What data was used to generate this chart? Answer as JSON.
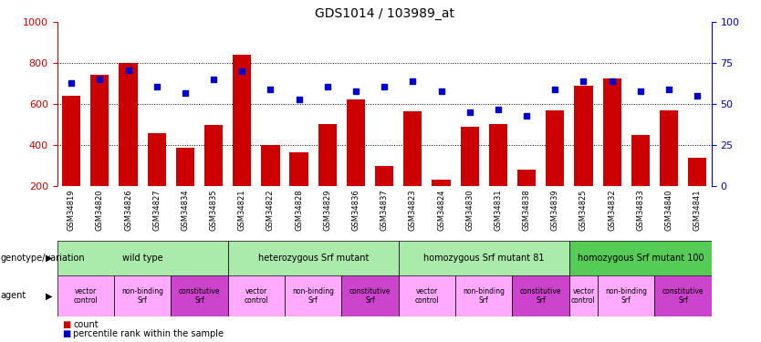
{
  "title": "GDS1014 / 103989_at",
  "samples": [
    "GSM34819",
    "GSM34820",
    "GSM34826",
    "GSM34827",
    "GSM34834",
    "GSM34835",
    "GSM34821",
    "GSM34822",
    "GSM34828",
    "GSM34829",
    "GSM34836",
    "GSM34837",
    "GSM34823",
    "GSM34824",
    "GSM34830",
    "GSM34831",
    "GSM34838",
    "GSM34839",
    "GSM34825",
    "GSM34832",
    "GSM34833",
    "GSM34840",
    "GSM34841"
  ],
  "counts": [
    640,
    745,
    800,
    460,
    390,
    500,
    840,
    400,
    365,
    505,
    625,
    300,
    565,
    235,
    490,
    505,
    280,
    570,
    690,
    725,
    450,
    570,
    340
  ],
  "percentiles": [
    63,
    65,
    71,
    61,
    57,
    65,
    70,
    59,
    53,
    61,
    58,
    61,
    64,
    58,
    45,
    47,
    43,
    59,
    64,
    64,
    58,
    59,
    55
  ],
  "bar_color": "#cc0000",
  "dot_color": "#0000cc",
  "ylim_left": [
    200,
    1000
  ],
  "ylim_right": [
    0,
    100
  ],
  "yticks_left": [
    200,
    400,
    600,
    800,
    1000
  ],
  "yticks_right": [
    0,
    25,
    50,
    75,
    100
  ],
  "hlines": [
    400,
    600,
    800
  ],
  "genotype_groups": [
    {
      "label": "wild type",
      "start": 0,
      "end": 6,
      "color": "#aaeaaa"
    },
    {
      "label": "heterozygous Srf mutant",
      "start": 6,
      "end": 12,
      "color": "#aaeaaa"
    },
    {
      "label": "homozygous Srf mutant 81",
      "start": 12,
      "end": 18,
      "color": "#aaeaaa"
    },
    {
      "label": "homozygous Srf mutant 100",
      "start": 18,
      "end": 23,
      "color": "#55cc55"
    }
  ],
  "agent_groups": [
    {
      "label": "vector\ncontrol",
      "start": 0,
      "end": 2,
      "color": "#ffaaff"
    },
    {
      "label": "non-binding\nSrf",
      "start": 2,
      "end": 4,
      "color": "#ffaaff"
    },
    {
      "label": "constitutive\nSrf",
      "start": 4,
      "end": 6,
      "color": "#cc44cc"
    },
    {
      "label": "vector\ncontrol",
      "start": 6,
      "end": 8,
      "color": "#ffaaff"
    },
    {
      "label": "non-binding\nSrf",
      "start": 8,
      "end": 10,
      "color": "#ffaaff"
    },
    {
      "label": "constitutive\nSrf",
      "start": 10,
      "end": 12,
      "color": "#cc44cc"
    },
    {
      "label": "vector\ncontrol",
      "start": 12,
      "end": 14,
      "color": "#ffaaff"
    },
    {
      "label": "non-binding\nSrf",
      "start": 14,
      "end": 16,
      "color": "#ffaaff"
    },
    {
      "label": "constitutive\nSrf",
      "start": 16,
      "end": 18,
      "color": "#cc44cc"
    },
    {
      "label": "vector\ncontrol",
      "start": 18,
      "end": 19,
      "color": "#ffaaff"
    },
    {
      "label": "non-binding\nSrf",
      "start": 19,
      "end": 21,
      "color": "#ffaaff"
    },
    {
      "label": "constitutive\nSrf",
      "start": 21,
      "end": 23,
      "color": "#cc44cc"
    }
  ],
  "legend_count_color": "#cc0000",
  "legend_dot_color": "#0000cc",
  "ylabel_left_color": "#cc0000",
  "ylabel_right_color": "#0000cc",
  "background_color": "#ffffff",
  "plot_bg_color": "#ffffff",
  "tick_bg_color": "#cccccc"
}
